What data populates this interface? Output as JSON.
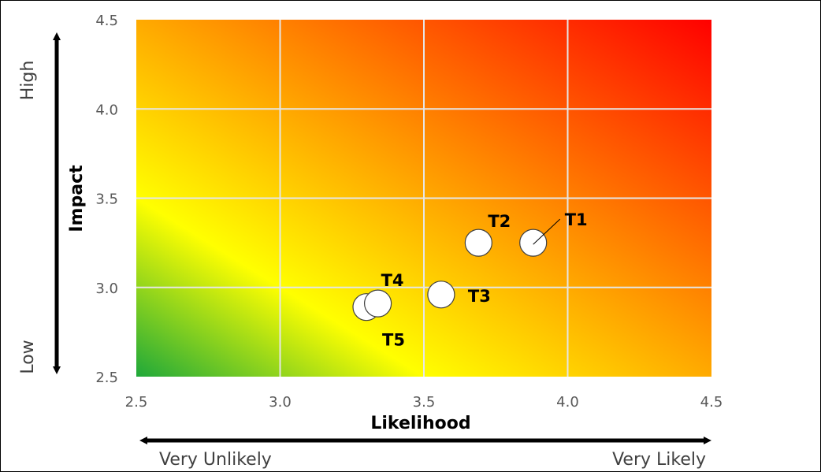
{
  "chart_data": {
    "type": "scatter",
    "xlabel": "Likelihood",
    "ylabel": "Impact",
    "xlim": [
      2.5,
      4.5
    ],
    "ylim": [
      2.5,
      4.5
    ],
    "x_ticks": [
      "2.5",
      "3.0",
      "3.5",
      "4.0",
      "4.5"
    ],
    "y_ticks": [
      "2.5",
      "3.0",
      "3.5",
      "4.0",
      "4.5"
    ],
    "grid": true,
    "background": "diagonal gradient green (low-left) to yellow to orange to red (top-right)",
    "colors": {
      "green": "#1fa83a",
      "yellow": "#ffff00",
      "orange": "#ff9900",
      "red": "#ff0000"
    },
    "points": [
      {
        "label": "T1",
        "x": 3.88,
        "y": 3.25
      },
      {
        "label": "T2",
        "x": 3.69,
        "y": 3.25
      },
      {
        "label": "T3",
        "x": 3.56,
        "y": 2.96
      },
      {
        "label": "T4",
        "x": 3.34,
        "y": 2.91
      },
      {
        "label": "T5",
        "x": 3.3,
        "y": 2.89
      }
    ],
    "y_arrow": {
      "high_label": "High",
      "low_label": "Low"
    },
    "x_arrow": {
      "left_label": "Very Unlikely",
      "right_label": "Very Likely"
    }
  }
}
